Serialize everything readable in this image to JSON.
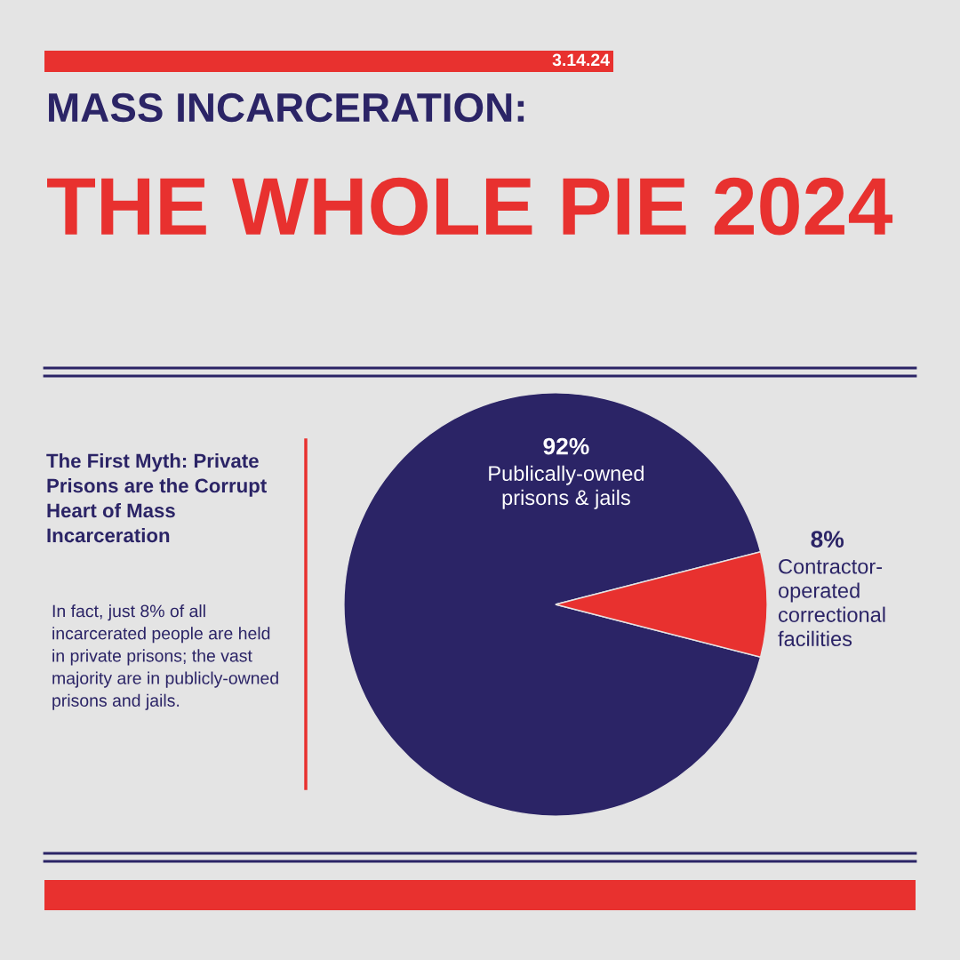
{
  "chart_data": {
    "type": "pie",
    "title": "MASS INCARCERATION:",
    "subtitle": "THE WHOLE PIE 2024",
    "categories": [
      "Publically-owned prisons & jails",
      "Contractor-operated correctional facilities"
    ],
    "values": [
      92,
      8
    ],
    "colors": [
      "#2b2466",
      "#e8312f"
    ],
    "value_labels": [
      "92%",
      "8%"
    ],
    "legend": false,
    "annotations": [
      "3.14.24",
      "The First Myth: Private Prisons are the Corrupt Heart of Mass Incarceration",
      "In fact, just 8% of all incarcerated people are held in private prisons; the vast majority are in publicly-owned prisons and jails."
    ]
  }
}
